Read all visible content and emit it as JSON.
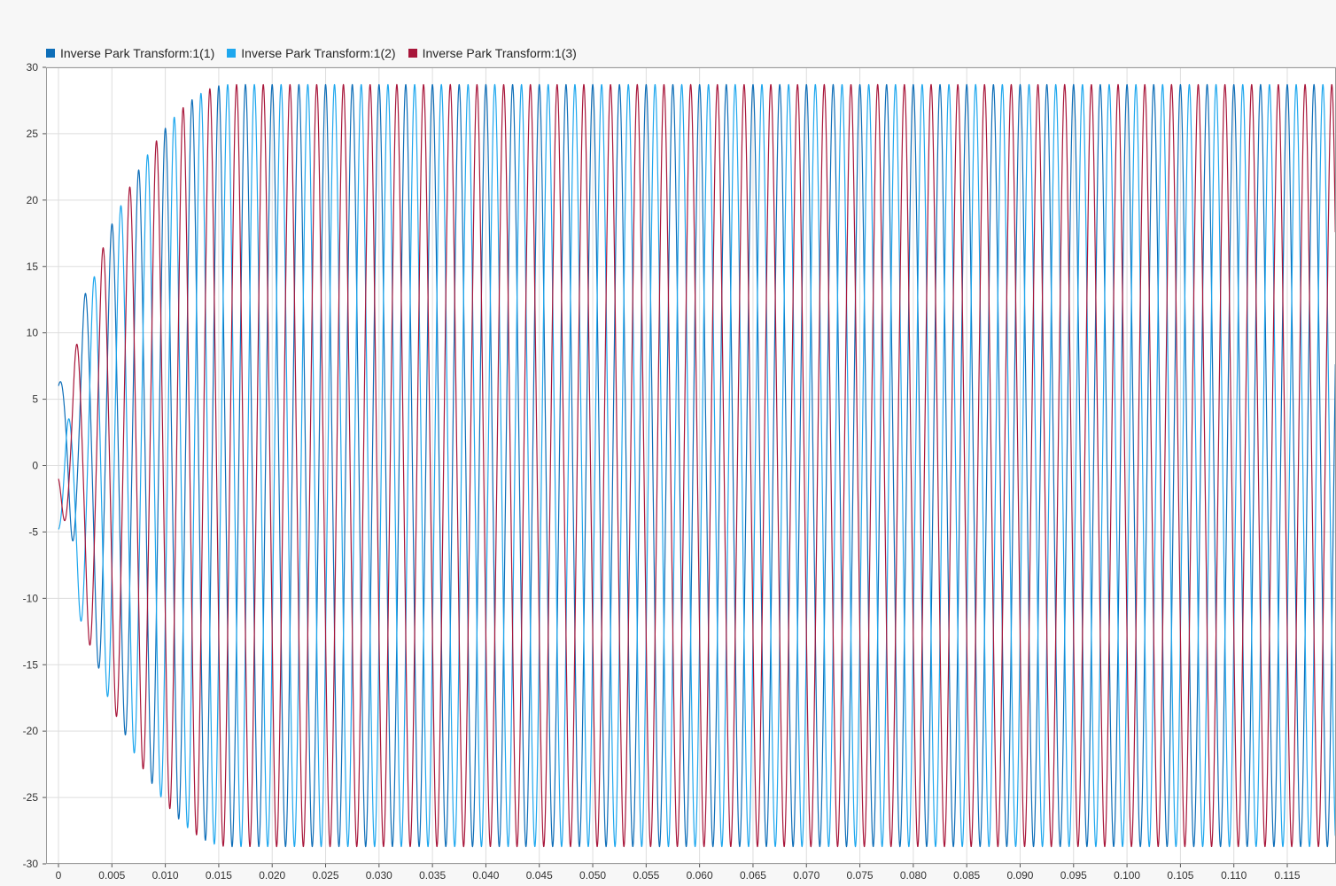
{
  "chart_data": {
    "type": "line",
    "title": "",
    "xlabel": "",
    "ylabel": "",
    "xlim": [
      0,
      0.1195
    ],
    "ylim": [
      -30,
      30
    ],
    "grid": true,
    "legend_position": "top-left",
    "x_ticks": [
      0,
      0.005,
      0.01,
      0.015,
      0.02,
      0.025,
      0.03,
      0.035,
      0.04,
      0.045,
      0.05,
      0.055,
      0.06,
      0.065,
      0.07,
      0.075,
      0.08,
      0.085,
      0.09,
      0.095,
      0.1,
      0.105,
      0.11,
      0.115
    ],
    "x_tick_labels": [
      "0",
      "0.005",
      "0.010",
      "0.015",
      "0.020",
      "0.025",
      "0.030",
      "0.035",
      "0.040",
      "0.045",
      "0.050",
      "0.055",
      "0.060",
      "0.065",
      "0.070",
      "0.075",
      "0.080",
      "0.085",
      "0.090",
      "0.095",
      "0.100",
      "0.105",
      "0.110",
      "0.115"
    ],
    "y_ticks": [
      30,
      25,
      20,
      15,
      10,
      5,
      0,
      -5,
      -10,
      -15,
      -20,
      -25,
      -30
    ],
    "y_tick_labels": [
      "30",
      "25",
      "20",
      "15",
      "10",
      "5",
      "0",
      "-5",
      "-10",
      "-15",
      "-20",
      "-25",
      "-30"
    ],
    "frequency_hz": 400,
    "steady_amplitude": 27.6,
    "settling_time": 0.016,
    "series": [
      {
        "name": "Inverse Park Transform:1(1)",
        "color": "#0e6eb8",
        "phase_deg": 0,
        "initial_value": 6.0
      },
      {
        "name": "Inverse Park Transform:1(2)",
        "color": "#1ea7ee",
        "phase_deg": -120,
        "initial_value": -4.8
      },
      {
        "name": "Inverse Park Transform:1(3)",
        "color": "#a8163a",
        "phase_deg": 120,
        "initial_value": -1.0
      }
    ]
  }
}
